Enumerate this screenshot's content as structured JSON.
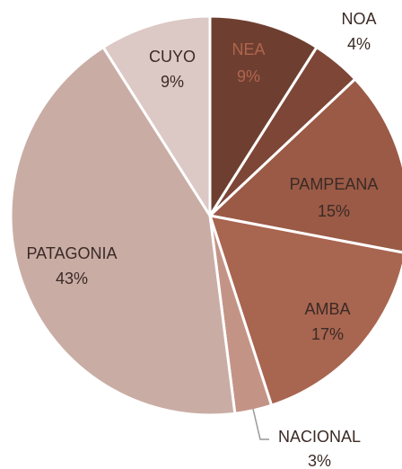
{
  "chart_data": {
    "type": "pie",
    "categories": [
      "NEA",
      "NOA",
      "PAMPEANA",
      "AMBA",
      "NACIONAL",
      "PATAGONIA",
      "CUYO"
    ],
    "values": [
      9,
      4,
      15,
      17,
      3,
      43,
      9
    ],
    "value_labels": [
      "9%",
      "4%",
      "15%",
      "17%",
      "3%",
      "43%",
      "9%"
    ],
    "colors": [
      "#6e3f30",
      "#7d4636",
      "#9a5a46",
      "#a86550",
      "#c39486",
      "#c9ada5",
      "#dcc8c4"
    ]
  }
}
